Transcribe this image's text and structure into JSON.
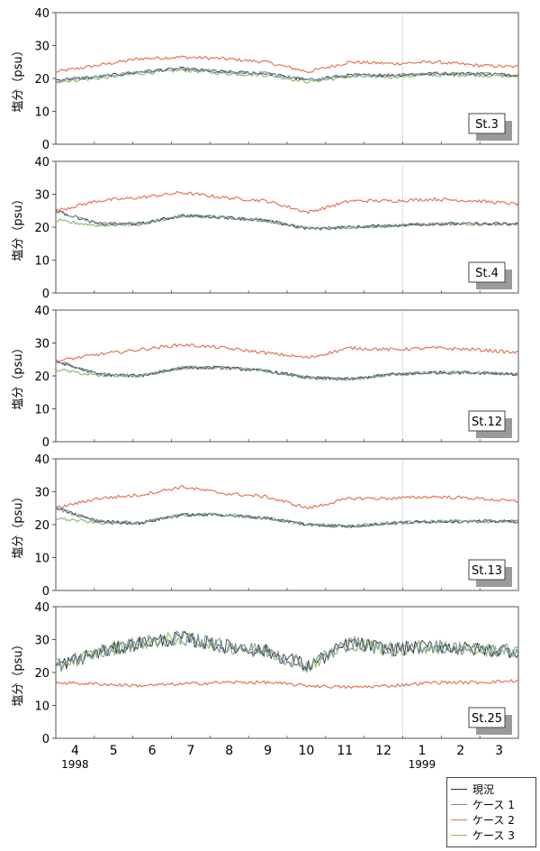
{
  "chart_data": {
    "type": "line",
    "ylabel": "塩分（psu）",
    "ylim": [
      0,
      40
    ],
    "yticks": [
      "0",
      "10",
      "20",
      "30",
      "40"
    ],
    "month_ticks": [
      "4",
      "5",
      "6",
      "7",
      "8",
      "9",
      "10",
      "11",
      "12",
      "1",
      "2",
      "3"
    ],
    "year_labels": [
      {
        "month": "4",
        "text": "1998"
      },
      {
        "month": "1",
        "text": "1999"
      }
    ],
    "series_styles": [
      {
        "name": "現況",
        "color": "#2b2b2b"
      },
      {
        "name": "ケース 1",
        "color": "#7b8fa3"
      },
      {
        "name": "ケース 2",
        "color": "#e2704c"
      },
      {
        "name": "ケース 3",
        "color": "#8cb86a"
      }
    ],
    "panels": [
      {
        "station": "St.3",
        "x": [
          "4",
          "5",
          "6",
          "7",
          "8",
          "9",
          "10",
          "11",
          "12",
          "1",
          "2",
          "3"
        ],
        "series": [
          {
            "name": "ケース 2",
            "values": [
              22,
              24,
              26,
              26.5,
              26,
              25,
              22,
              25,
              24.5,
              25,
              24,
              23.5
            ]
          },
          {
            "name": "ケース 3",
            "values": [
              19,
              20,
              21.5,
              22.5,
              21.5,
              21,
              19,
              20.5,
              20.5,
              21,
              21,
              20.5
            ]
          },
          {
            "name": "現況",
            "values": [
              19.5,
              20.5,
              22,
              23,
              22,
              21.5,
              19.5,
              21,
              21,
              21.5,
              21.5,
              21
            ]
          },
          {
            "name": "ケース 1",
            "values": [
              19.5,
              20.5,
              22,
              23,
              22,
              21.5,
              19.5,
              21,
              21,
              21.5,
              21.5,
              21
            ]
          }
        ]
      },
      {
        "station": "St.4",
        "x": [
          "4",
          "5",
          "6",
          "7",
          "8",
          "9",
          "10",
          "11",
          "12",
          "1",
          "2",
          "3"
        ],
        "series": [
          {
            "name": "ケース 2",
            "values": [
              25,
              28,
              29,
              30.5,
              29,
              28,
              24.5,
              28,
              28,
              28.5,
              28,
              27
            ]
          },
          {
            "name": "ケース 3",
            "values": [
              22,
              20.5,
              21,
              23.5,
              23,
              22,
              19.5,
              20,
              20.5,
              21,
              21,
              21
            ]
          },
          {
            "name": "現況",
            "values": [
              25,
              21,
              21,
              23.5,
              23,
              22,
              19.5,
              20,
              20.5,
              21,
              21,
              21
            ]
          },
          {
            "name": "ケース 1",
            "values": [
              25,
              21,
              21,
              23.5,
              23,
              22,
              19.5,
              20,
              20.5,
              21,
              21,
              21
            ]
          }
        ]
      },
      {
        "station": "St.12",
        "x": [
          "4",
          "5",
          "6",
          "7",
          "8",
          "9",
          "10",
          "11",
          "12",
          "1",
          "2",
          "3"
        ],
        "series": [
          {
            "name": "ケース 2",
            "values": [
              24.5,
              26.5,
              28,
              29.5,
              28.5,
              27,
              25.5,
              28.5,
              28,
              28.5,
              28,
              27
            ]
          },
          {
            "name": "ケース 3",
            "values": [
              22,
              20,
              20,
              22.5,
              22.5,
              21.5,
              19.5,
              19,
              20.5,
              21,
              21,
              20.5
            ]
          },
          {
            "name": "現況",
            "values": [
              24.5,
              20.5,
              20,
              22.5,
              22.5,
              21.5,
              19.5,
              19,
              20.5,
              21,
              21,
              20.5
            ]
          },
          {
            "name": "ケース 1",
            "values": [
              24.5,
              20.5,
              20,
              22.5,
              22.5,
              21.5,
              19.5,
              19,
              20.5,
              21,
              21,
              20.5
            ]
          }
        ]
      },
      {
        "station": "St.13",
        "x": [
          "4",
          "5",
          "6",
          "7",
          "8",
          "9",
          "10",
          "11",
          "12",
          "1",
          "2",
          "3"
        ],
        "series": [
          {
            "name": "ケース 2",
            "values": [
              25,
              28,
              29,
              31.5,
              29.5,
              28.5,
              25,
              28,
              28,
              28.5,
              28,
              27
            ]
          },
          {
            "name": "ケース 3",
            "values": [
              22,
              20.5,
              20.5,
              23,
              23,
              22,
              20,
              19.5,
              20.5,
              21,
              21,
              21
            ]
          },
          {
            "name": "現況",
            "values": [
              25,
              21,
              20.5,
              23,
              23,
              22,
              20,
              19.5,
              20.5,
              21,
              21,
              21
            ]
          },
          {
            "name": "ケース 1",
            "values": [
              25,
              21,
              20.5,
              23,
              23,
              22,
              20,
              19.5,
              20.5,
              21,
              21,
              21
            ]
          }
        ]
      },
      {
        "station": "St.25",
        "x": [
          "4",
          "5",
          "6",
          "7",
          "8",
          "9",
          "10",
          "11",
          "12",
          "1",
          "2",
          "3"
        ],
        "series": [
          {
            "name": "ケース 3",
            "values": [
              22,
              26,
              29,
              30.5,
              28,
              26.5,
              22,
              29,
              27,
              28,
              27,
              26.5
            ]
          },
          {
            "name": "ケース 2",
            "values": [
              17,
              16.5,
              16,
              16.5,
              17,
              17,
              16,
              15.5,
              16,
              17,
              17,
              17.5
            ]
          },
          {
            "name": "現況",
            "values": [
              22,
              26,
              29,
              30.5,
              28,
              26.5,
              22,
              29,
              27,
              28,
              27,
              26.5
            ]
          },
          {
            "name": "ケース 1",
            "values": [
              22,
              26,
              29,
              30.5,
              28,
              26.5,
              22,
              29,
              27,
              28,
              27,
              26.5
            ]
          }
        ]
      }
    ]
  }
}
